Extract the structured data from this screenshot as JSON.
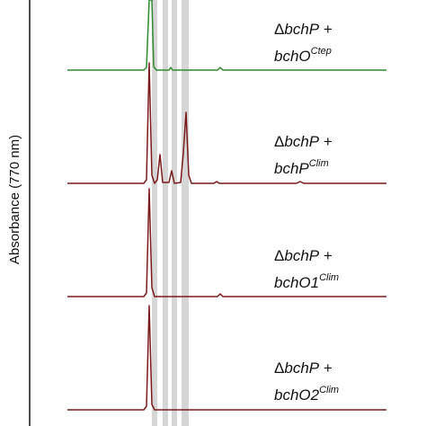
{
  "y_label": "Absorbance (770 nm)",
  "traces": [
    {
      "prefix": "Δ",
      "gene": "bchP",
      "suffix": " +",
      "base": "bchO",
      "sup": "Ctep"
    },
    {
      "prefix": "Δ",
      "gene": "bchP",
      "suffix": " +",
      "base": "bchP",
      "sup": "Clim"
    },
    {
      "prefix": "Δ",
      "gene": "bchP",
      "suffix": " +",
      "base": "bchO1",
      "sup": "Clim"
    },
    {
      "prefix": "Δ",
      "gene": "bchP",
      "suffix": " +",
      "base": "bchO2",
      "sup": "Clim"
    }
  ]
}
